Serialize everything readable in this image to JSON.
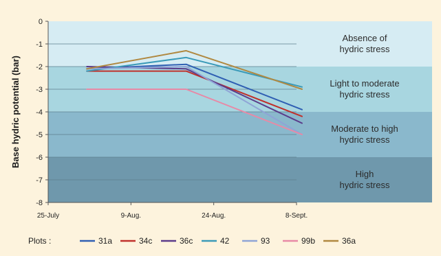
{
  "chart_data": {
    "type": "line",
    "title": "",
    "xlabel": "",
    "ylabel": "Base hydric potential (bar)",
    "ylim": [
      -8,
      0
    ],
    "yticks": [
      0,
      -1,
      -2,
      -3,
      -4,
      -5,
      -6,
      -7,
      -8
    ],
    "xlim": [
      0,
      45
    ],
    "x_ticks": [
      {
        "label": "25-July",
        "x": 0
      },
      {
        "label": "9-Aug.",
        "x": 15
      },
      {
        "label": "24-Aug.",
        "x": 30
      },
      {
        "label": "8-Sept.",
        "x": 45
      }
    ],
    "grid": true,
    "zones": [
      {
        "from": 0,
        "to": -2,
        "lines": [
          "Absence of",
          "hydric stress"
        ],
        "color": "#d6ecf3"
      },
      {
        "from": -2,
        "to": -4,
        "lines": [
          "Light to moderate",
          "hydric stress"
        ],
        "color": "#a8d6e0"
      },
      {
        "from": -4,
        "to": -6,
        "lines": [
          "Moderate to high",
          "hydric stress"
        ],
        "color": "#8ab8cc"
      },
      {
        "from": -6,
        "to": -8,
        "lines": [
          "High",
          "hydric stress"
        ],
        "color": "#6f98ac"
      }
    ],
    "legend_title": "Plots :",
    "legend_position": "bottom",
    "series": [
      {
        "name": "31a",
        "color": "#2f5fb3",
        "points": [
          [
            7,
            -2.1
          ],
          [
            25,
            -1.9
          ],
          [
            46,
            -3.9
          ]
        ]
      },
      {
        "name": "34c",
        "color": "#c0302b",
        "points": [
          [
            7,
            -2.2
          ],
          [
            25,
            -2.2
          ],
          [
            46,
            -4.2
          ]
        ]
      },
      {
        "name": "36c",
        "color": "#5a3b8a",
        "points": [
          [
            7,
            -2.0
          ],
          [
            25,
            -2.1
          ],
          [
            46,
            -4.5
          ]
        ]
      },
      {
        "name": "42",
        "color": "#3a9ab8",
        "points": [
          [
            7,
            -2.2
          ],
          [
            25,
            -1.6
          ],
          [
            46,
            -2.9
          ]
        ]
      },
      {
        "name": "93",
        "color": "#8fa4d6",
        "points": [
          [
            7,
            -2.1
          ],
          [
            25,
            -2.0
          ],
          [
            46,
            -5.0
          ]
        ]
      },
      {
        "name": "99b",
        "color": "#e889a6",
        "points": [
          [
            7,
            -3.0
          ],
          [
            25,
            -3.0
          ],
          [
            46,
            -5.0
          ]
        ]
      },
      {
        "name": "36a",
        "color": "#b08840",
        "points": [
          [
            7,
            -2.1
          ],
          [
            25,
            -1.3
          ],
          [
            46,
            -3.0
          ]
        ]
      }
    ]
  }
}
